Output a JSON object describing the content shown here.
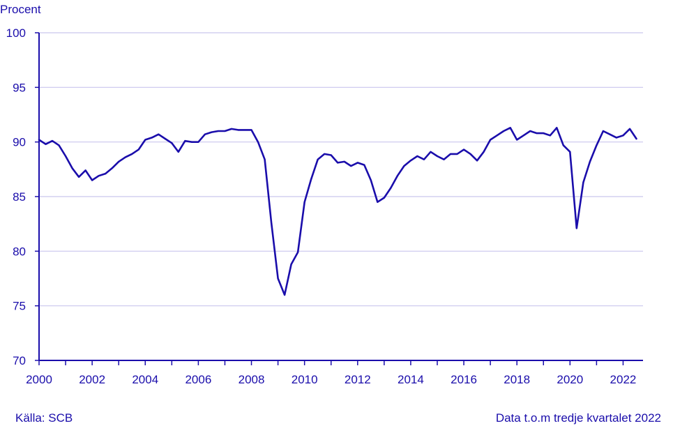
{
  "chart_data": {
    "type": "line",
    "ylabel": "Procent",
    "ylim": [
      70,
      100
    ],
    "xlim": [
      2000,
      2022.75
    ],
    "yticks": [
      70,
      75,
      80,
      85,
      90,
      95,
      100
    ],
    "xticks": [
      "2000",
      "2002",
      "2004",
      "2006",
      "2008",
      "2010",
      "2012",
      "2014",
      "2016",
      "2018",
      "2020",
      "2022"
    ],
    "grid": true,
    "line_color": "#1a0dab",
    "grid_color": "#c9c6ee",
    "series": [
      {
        "x": [
          2000.0,
          2000.25,
          2000.5,
          2000.75,
          2001.0,
          2001.25,
          2001.5,
          2001.75,
          2002.0,
          2002.25,
          2002.5,
          2002.75,
          2003.0,
          2003.25,
          2003.5,
          2003.75,
          2004.0,
          2004.25,
          2004.5,
          2004.75,
          2005.0,
          2005.25,
          2005.5,
          2005.75,
          2006.0,
          2006.25,
          2006.5,
          2006.75,
          2007.0,
          2007.25,
          2007.5,
          2007.75,
          2008.0,
          2008.25,
          2008.5,
          2008.75,
          2009.0,
          2009.25,
          2009.5,
          2009.75,
          2010.0,
          2010.25,
          2010.5,
          2010.75,
          2011.0,
          2011.25,
          2011.5,
          2011.75,
          2012.0,
          2012.25,
          2012.5,
          2012.75,
          2013.0,
          2013.25,
          2013.5,
          2013.75,
          2014.0,
          2014.25,
          2014.5,
          2014.75,
          2015.0,
          2015.25,
          2015.5,
          2015.75,
          2016.0,
          2016.25,
          2016.5,
          2016.75,
          2017.0,
          2017.25,
          2017.5,
          2017.75,
          2018.0,
          2018.25,
          2018.5,
          2018.75,
          2019.0,
          2019.25,
          2019.5,
          2019.75,
          2020.0,
          2020.25,
          2020.5,
          2020.75,
          2021.0,
          2021.25,
          2021.5,
          2021.75,
          2022.0,
          2022.25,
          2022.5
        ],
        "values": [
          90.2,
          89.8,
          90.1,
          89.7,
          88.7,
          87.6,
          86.8,
          87.4,
          86.5,
          86.9,
          87.1,
          87.6,
          88.2,
          88.6,
          88.9,
          89.3,
          90.2,
          90.4,
          90.7,
          90.3,
          89.9,
          89.1,
          90.1,
          90.0,
          90.0,
          90.7,
          90.9,
          91.0,
          91.0,
          91.2,
          91.1,
          91.1,
          91.1,
          90.0,
          88.4,
          82.6,
          77.5,
          76.0,
          78.8,
          79.9,
          84.5,
          86.6,
          88.4,
          88.9,
          88.8,
          88.1,
          88.2,
          87.8,
          88.1,
          87.9,
          86.5,
          84.5,
          84.9,
          85.8,
          86.9,
          87.8,
          88.3,
          88.7,
          88.4,
          89.1,
          88.7,
          88.4,
          88.9,
          88.9,
          89.3,
          88.9,
          88.3,
          89.1,
          90.2,
          90.6,
          91.0,
          91.3,
          90.2,
          90.6,
          91.0,
          90.8,
          90.8,
          90.6,
          91.3,
          89.7,
          89.1,
          82.1,
          86.3,
          88.2,
          89.7,
          91.0,
          90.7,
          90.4,
          90.6,
          91.2,
          90.3
        ]
      }
    ]
  },
  "footer": {
    "source": "Källa: SCB",
    "note": "Data t.o.m tredje kvartalet 2022"
  }
}
